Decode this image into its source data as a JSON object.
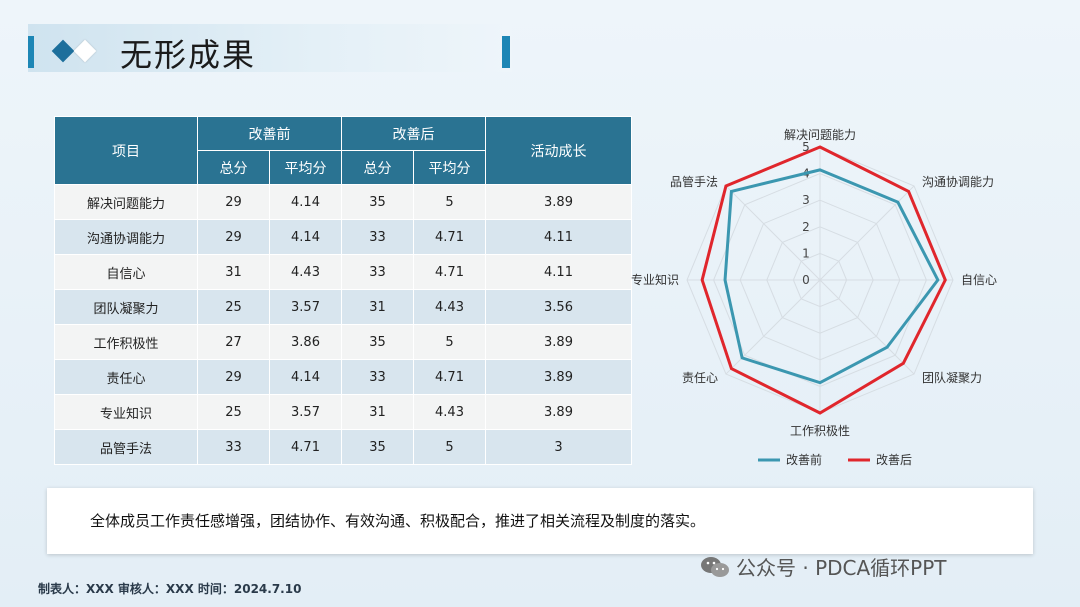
{
  "title": "无形成果",
  "table": {
    "headers": {
      "item": "项目",
      "before": "改善前",
      "after": "改善后",
      "growth": "活动成长",
      "total": "总分",
      "avg": "平均分"
    },
    "rows": [
      {
        "item": "解决问题能力",
        "before_total": "29",
        "before_avg": "4.14",
        "after_total": "35",
        "after_avg": "5",
        "growth": "3.89"
      },
      {
        "item": "沟通协调能力",
        "before_total": "29",
        "before_avg": "4.14",
        "after_total": "33",
        "after_avg": "4.71",
        "growth": "4.11"
      },
      {
        "item": "自信心",
        "before_total": "31",
        "before_avg": "4.43",
        "after_total": "33",
        "after_avg": "4.71",
        "growth": "4.11"
      },
      {
        "item": "团队凝聚力",
        "before_total": "25",
        "before_avg": "3.57",
        "after_total": "31",
        "after_avg": "4.43",
        "growth": "3.56"
      },
      {
        "item": "工作积极性",
        "before_total": "27",
        "before_avg": "3.86",
        "after_total": "35",
        "after_avg": "5",
        "growth": "3.89"
      },
      {
        "item": "责任心",
        "before_total": "29",
        "before_avg": "4.14",
        "after_total": "33",
        "after_avg": "4.71",
        "growth": "3.89"
      },
      {
        "item": "专业知识",
        "before_total": "25",
        "before_avg": "3.57",
        "after_total": "31",
        "after_avg": "4.43",
        "growth": "3.89"
      },
      {
        "item": "品管手法",
        "before_total": "33",
        "before_avg": "4.71",
        "after_total": "35",
        "after_avg": "5",
        "growth": "3"
      }
    ]
  },
  "chart_data": {
    "type": "radar",
    "categories": [
      "解决问题能力",
      "沟通协调能力",
      "自信心",
      "团队凝聚力",
      "工作积极性",
      "责任心",
      "专业知识",
      "品管手法"
    ],
    "series": [
      {
        "name": "改善前",
        "values": [
          4.14,
          4.14,
          4.43,
          3.57,
          3.86,
          4.14,
          3.57,
          4.71
        ],
        "color": "#3b97b0"
      },
      {
        "name": "改善后",
        "values": [
          5,
          4.71,
          4.71,
          4.43,
          5,
          4.71,
          4.43,
          5
        ],
        "color": "#e0262c"
      }
    ],
    "rlim": [
      0,
      5
    ],
    "ticks": [
      "0",
      "1",
      "2",
      "3",
      "4",
      "5"
    ],
    "legend": "bottom"
  },
  "summary": "全体成员工作责任感增强，团结协作、有效沟通、积极配合，推进了相关流程及制度的落实。",
  "footer": "制表人：XXX  审核人：XXX  时间：2024.7.10",
  "watermark": "公众号 · PDCA循环PPT",
  "colors": {
    "accent": "#1d86b5",
    "table_header": "#2a7392"
  }
}
